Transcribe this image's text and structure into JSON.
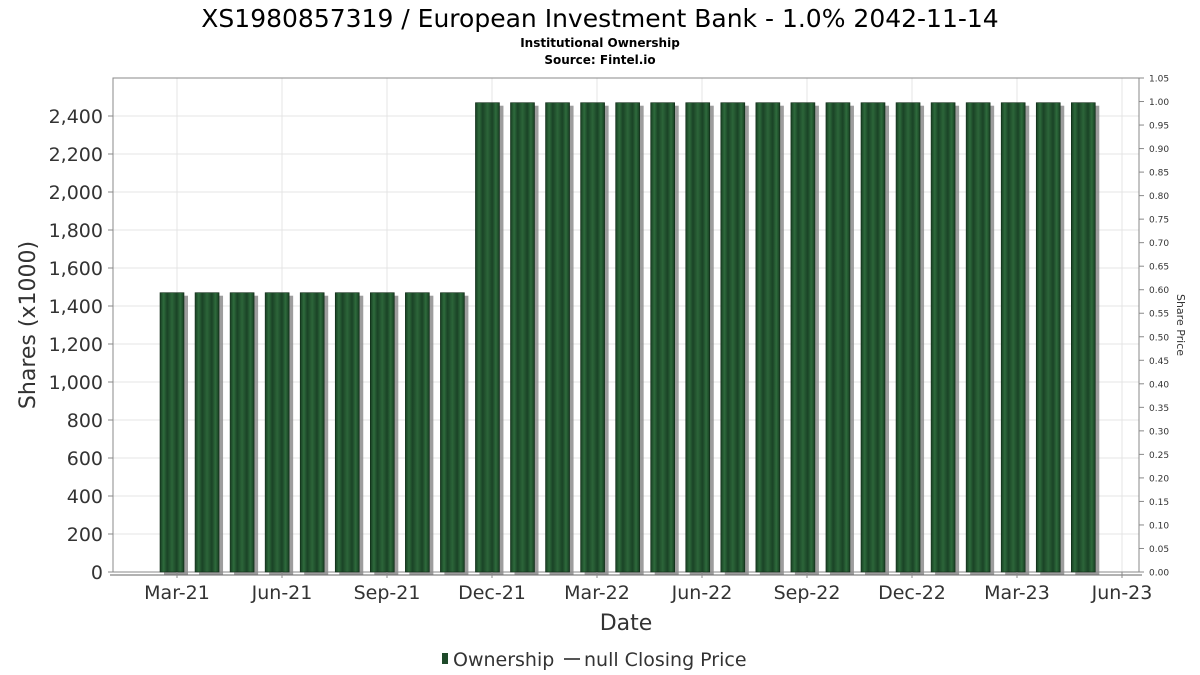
{
  "chart_data": {
    "type": "bar",
    "title": "XS1980857319 / European Investment Bank - 1.0% 2042-11-14",
    "subtitle": "Institutional Ownership",
    "source": "Source: Fintel.io",
    "xlabel": "Date",
    "ylabel": "Shares (x1000)",
    "y2label": "Share Price",
    "ylim": [
      0,
      2600
    ],
    "y2lim": [
      0,
      1.05
    ],
    "grid": true,
    "legend_position": "bottom",
    "x_tick_labels": [
      "Mar-21",
      "Jun-21",
      "Sep-21",
      "Dec-21",
      "Mar-22",
      "Jun-22",
      "Sep-22",
      "Dec-22",
      "Mar-23",
      "Jun-23"
    ],
    "y_tick_labels": [
      "0",
      "200",
      "400",
      "600",
      "800",
      "1,000",
      "1,200",
      "1,400",
      "1,600",
      "1,800",
      "2,000",
      "2,200",
      "2,400"
    ],
    "y2_tick_labels": [
      "0.00",
      "0.05",
      "0.10",
      "0.15",
      "0.20",
      "0.25",
      "0.30",
      "0.35",
      "0.40",
      "0.45",
      "0.50",
      "0.55",
      "0.60",
      "0.65",
      "0.70",
      "0.75",
      "0.80",
      "0.85",
      "0.90",
      "0.95",
      "1.00",
      "1.05"
    ],
    "series": [
      {
        "name": "Ownership",
        "color": "#1e4a2a",
        "values": [
          1470,
          1470,
          1470,
          1470,
          1470,
          1470,
          1470,
          1470,
          1470,
          2470,
          2470,
          2470,
          2470,
          2470,
          2470,
          2470,
          2470,
          2470,
          2470,
          2470,
          2470,
          2470,
          2470,
          2470,
          2470,
          2470,
          2470
        ]
      },
      {
        "name": "null Closing Price",
        "color": "#555555",
        "values": []
      }
    ]
  }
}
